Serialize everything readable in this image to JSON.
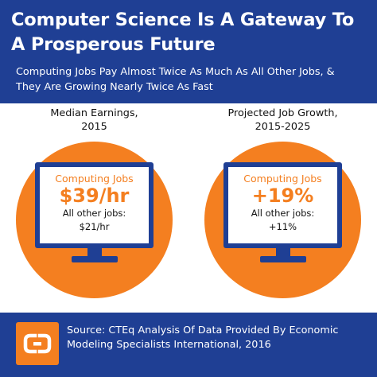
{
  "header": {
    "title_line1": "Computer Science Is A Gateway To",
    "title_line2": "A Prosperous Future",
    "subtitle_line1": "Computing Jobs Pay Almost Twice As Much As All Other Jobs, &",
    "subtitle_line2": "They Are Growing Nearly Twice As Fast"
  },
  "panels": [
    {
      "label_line1": "Median Earnings,",
      "label_line2": "2015",
      "category": "Computing Jobs",
      "value": "$39/hr",
      "other_label": "All other jobs:",
      "other_value": "$21/hr"
    },
    {
      "label_line1": "Projected Job Growth,",
      "label_line2": "2015-2025",
      "category": "Computing Jobs",
      "value": "+19%",
      "other_label": "All other jobs:",
      "other_value": "+11%"
    }
  ],
  "footer": {
    "logo_icon": "code-org-logo-icon",
    "source_line1": "Source: CTEq Analysis Of Data Provided By Economic",
    "source_line2": "Modeling Specialists International, 2016"
  },
  "colors": {
    "navy": "#1f3f94",
    "orange": "#f47f20",
    "white": "#ffffff"
  }
}
